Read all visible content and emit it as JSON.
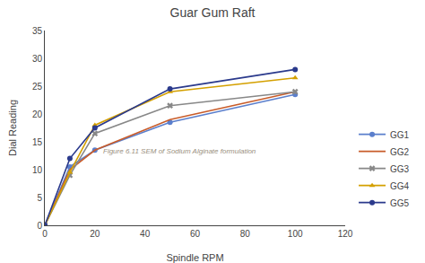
{
  "chart_data": {
    "type": "line",
    "title": "Guar Gum Raft",
    "x_label": "Spindle RPM",
    "y_label": "Dial Reading",
    "x": [
      0,
      10,
      20,
      50,
      100
    ],
    "series": [
      {
        "name": "GG1",
        "color": "#5b7fcc",
        "marker": "circle",
        "line_style": "solid",
        "values": [
          0,
          10.5,
          13.5,
          18.5,
          23.5
        ]
      },
      {
        "name": "GG2",
        "color": "#c85c2a",
        "marker": "none",
        "line_style": "solid",
        "values": [
          0,
          10.0,
          13.5,
          19.0,
          24.0
        ]
      },
      {
        "name": "GG3",
        "color": "#888888",
        "marker": "x",
        "line_style": "solid",
        "values": [
          0,
          9.0,
          16.5,
          21.5,
          24.0
        ]
      },
      {
        "name": "GG4",
        "color": "#d4a000",
        "marker": "triangle-up",
        "line_style": "solid",
        "values": [
          0,
          9.5,
          18.0,
          24.0,
          26.5
        ]
      },
      {
        "name": "GG5",
        "color": "#2b3a8c",
        "marker": "circle",
        "line_style": "solid",
        "values": [
          0,
          12.0,
          17.5,
          24.5,
          28.0
        ]
      }
    ],
    "xlim": [
      0,
      120
    ],
    "ylim": [
      0,
      35
    ],
    "xticks": [
      0,
      20,
      40,
      60,
      80,
      100,
      120
    ],
    "yticks": [
      0,
      5,
      10,
      15,
      20,
      25,
      30,
      35
    ],
    "grid": false,
    "legend": "lower right",
    "annotations": [
      "Figure 6.11 SEM of Sodium Alginate formulation"
    ]
  }
}
